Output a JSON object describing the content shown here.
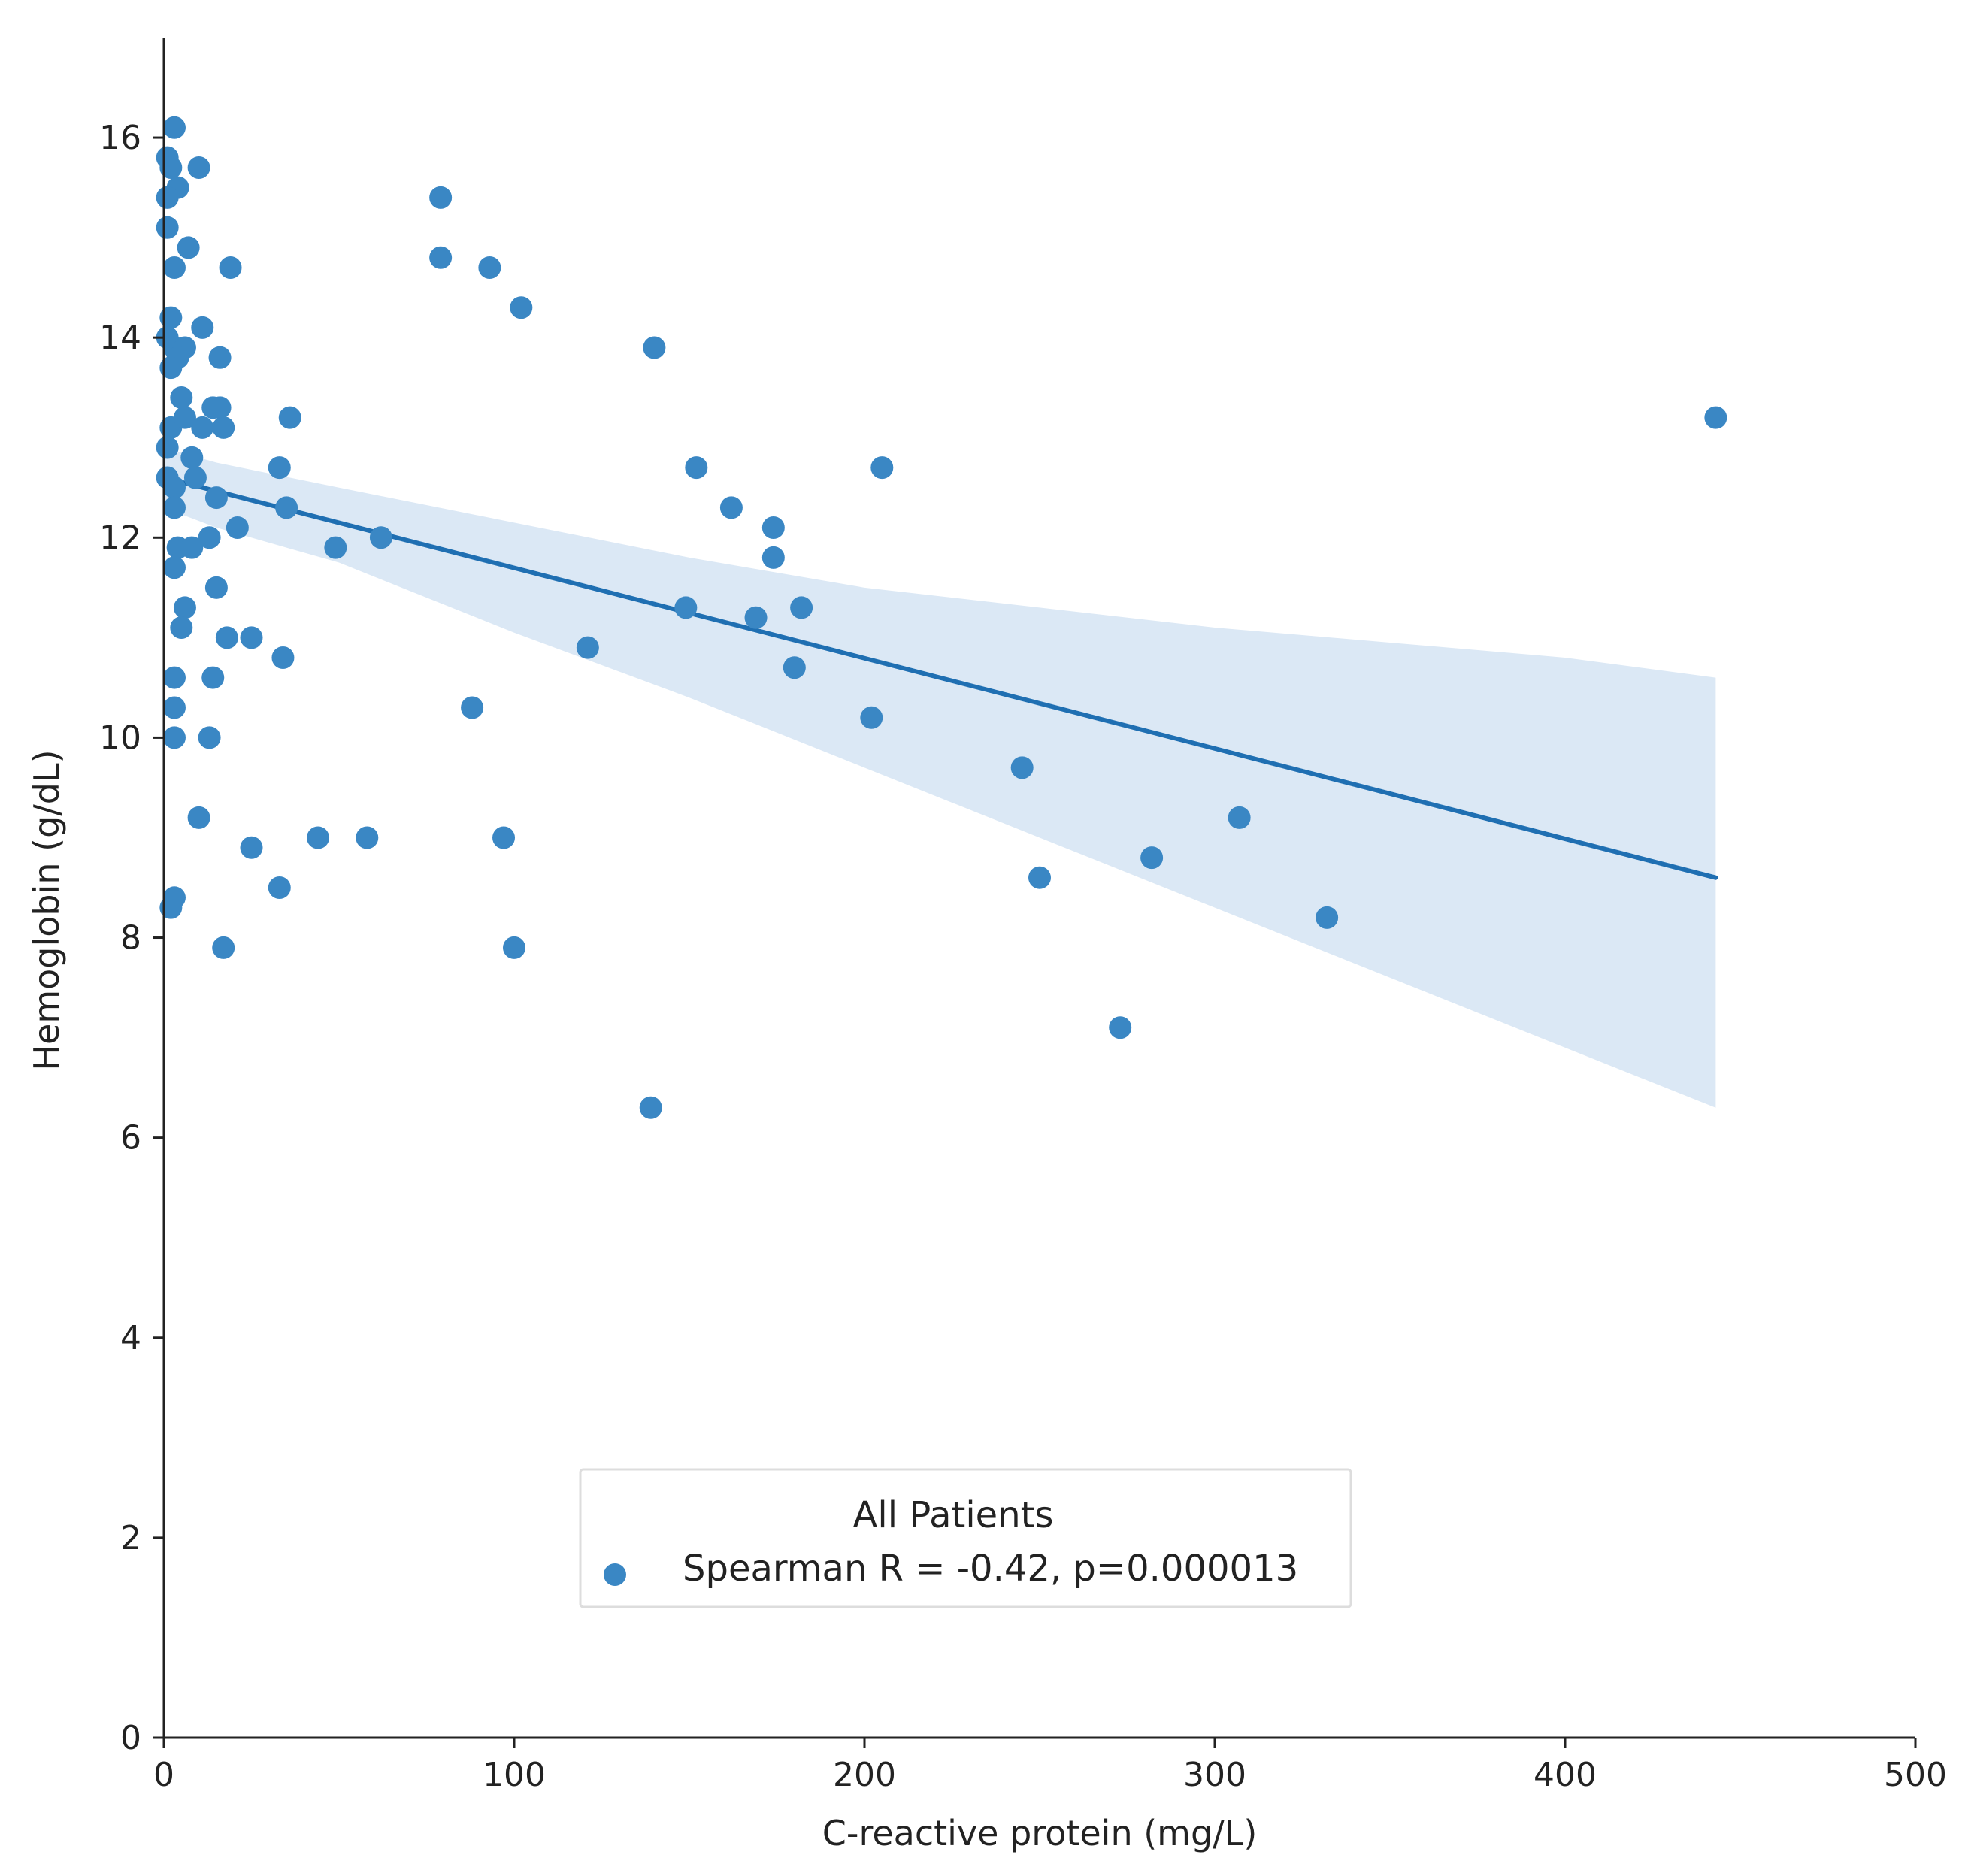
{
  "colors": {
    "point": "#3a87c4",
    "line": "#1f6fb2",
    "band": "#dbe8f5",
    "axis": "#222222",
    "legend_border": "#dddddd"
  },
  "chart_data": {
    "type": "scatter",
    "title": "",
    "xlabel": "C-reactive protein (mg/L)",
    "ylabel": "Hemoglobin (g/dL)",
    "xlim": [
      0,
      500
    ],
    "ylim": [
      0,
      17
    ],
    "xticks": [
      0,
      100,
      200,
      300,
      400,
      500
    ],
    "yticks": [
      0,
      2,
      4,
      6,
      8,
      10,
      12,
      14,
      16
    ],
    "grid": false,
    "legend": {
      "title": "All Patients",
      "label": "Spearman R = -0.42, p=0.000013",
      "placement": "lower-center"
    },
    "regression": {
      "x": [
        0,
        443
      ],
      "y": [
        12.6,
        8.6
      ]
    },
    "confidence_band": {
      "upper": [
        [
          0,
          12.9
        ],
        [
          15,
          12.75
        ],
        [
          50,
          12.5
        ],
        [
          100,
          12.15
        ],
        [
          150,
          11.8
        ],
        [
          200,
          11.5
        ],
        [
          250,
          11.3
        ],
        [
          300,
          11.1
        ],
        [
          350,
          10.95
        ],
        [
          400,
          10.8
        ],
        [
          443,
          10.6
        ]
      ],
      "lower": [
        [
          443,
          6.3
        ],
        [
          400,
          6.9
        ],
        [
          350,
          7.6
        ],
        [
          300,
          8.3
        ],
        [
          250,
          9.0
        ],
        [
          200,
          9.7
        ],
        [
          150,
          10.4
        ],
        [
          100,
          11.05
        ],
        [
          50,
          11.75
        ],
        [
          15,
          12.1
        ],
        [
          0,
          12.3
        ]
      ]
    },
    "series": [
      {
        "name": "All Patients",
        "points": [
          [
            3,
            16.1
          ],
          [
            1,
            15.8
          ],
          [
            2,
            15.7
          ],
          [
            4,
            15.5
          ],
          [
            1,
            15.4
          ],
          [
            10,
            15.7
          ],
          [
            1,
            15.1
          ],
          [
            7,
            14.9
          ],
          [
            3,
            14.7
          ],
          [
            19,
            14.7
          ],
          [
            2,
            14.2
          ],
          [
            11,
            14.1
          ],
          [
            1,
            14.0
          ],
          [
            3,
            13.9
          ],
          [
            6,
            13.9
          ],
          [
            4,
            13.8
          ],
          [
            2,
            13.7
          ],
          [
            16,
            13.8
          ],
          [
            5,
            13.4
          ],
          [
            14,
            13.3
          ],
          [
            16,
            13.3
          ],
          [
            36,
            13.2
          ],
          [
            2,
            13.1
          ],
          [
            6,
            13.2
          ],
          [
            11,
            13.1
          ],
          [
            17,
            13.1
          ],
          [
            1,
            12.9
          ],
          [
            8,
            12.8
          ],
          [
            1,
            12.6
          ],
          [
            3,
            12.5
          ],
          [
            9,
            12.6
          ],
          [
            33,
            12.7
          ],
          [
            15,
            12.4
          ],
          [
            3,
            12.3
          ],
          [
            35,
            12.3
          ],
          [
            13,
            12.0
          ],
          [
            21,
            12.1
          ],
          [
            62,
            12.0
          ],
          [
            4,
            11.9
          ],
          [
            8,
            11.9
          ],
          [
            49,
            11.9
          ],
          [
            3,
            11.7
          ],
          [
            15,
            11.5
          ],
          [
            6,
            11.3
          ],
          [
            5,
            11.1
          ],
          [
            18,
            11.0
          ],
          [
            25,
            11.0
          ],
          [
            34,
            10.8
          ],
          [
            3,
            10.6
          ],
          [
            14,
            10.6
          ],
          [
            3,
            10.3
          ],
          [
            3,
            10.0
          ],
          [
            13,
            10.0
          ],
          [
            10,
            9.2
          ],
          [
            25,
            8.9
          ],
          [
            44,
            9.0
          ],
          [
            58,
            9.0
          ],
          [
            33,
            8.5
          ],
          [
            3,
            8.4
          ],
          [
            2,
            8.3
          ],
          [
            17,
            7.9
          ],
          [
            79,
            15.4
          ],
          [
            79,
            14.8
          ],
          [
            93,
            14.7
          ],
          [
            102,
            14.3
          ],
          [
            140,
            13.9
          ],
          [
            152,
            12.7
          ],
          [
            205,
            12.7
          ],
          [
            162,
            12.3
          ],
          [
            174,
            12.1
          ],
          [
            174,
            11.8
          ],
          [
            149,
            11.3
          ],
          [
            169,
            11.2
          ],
          [
            182,
            11.3
          ],
          [
            121,
            10.9
          ],
          [
            180,
            10.7
          ],
          [
            88,
            10.3
          ],
          [
            202,
            10.2
          ],
          [
            97,
            9.0
          ],
          [
            100,
            7.9
          ],
          [
            139,
            6.3
          ],
          [
            245,
            9.7
          ],
          [
            250,
            8.6
          ],
          [
            307,
            9.2
          ],
          [
            282,
            8.8
          ],
          [
            332,
            8.2
          ],
          [
            273,
            7.1
          ],
          [
            443,
            13.2
          ]
        ]
      }
    ]
  }
}
